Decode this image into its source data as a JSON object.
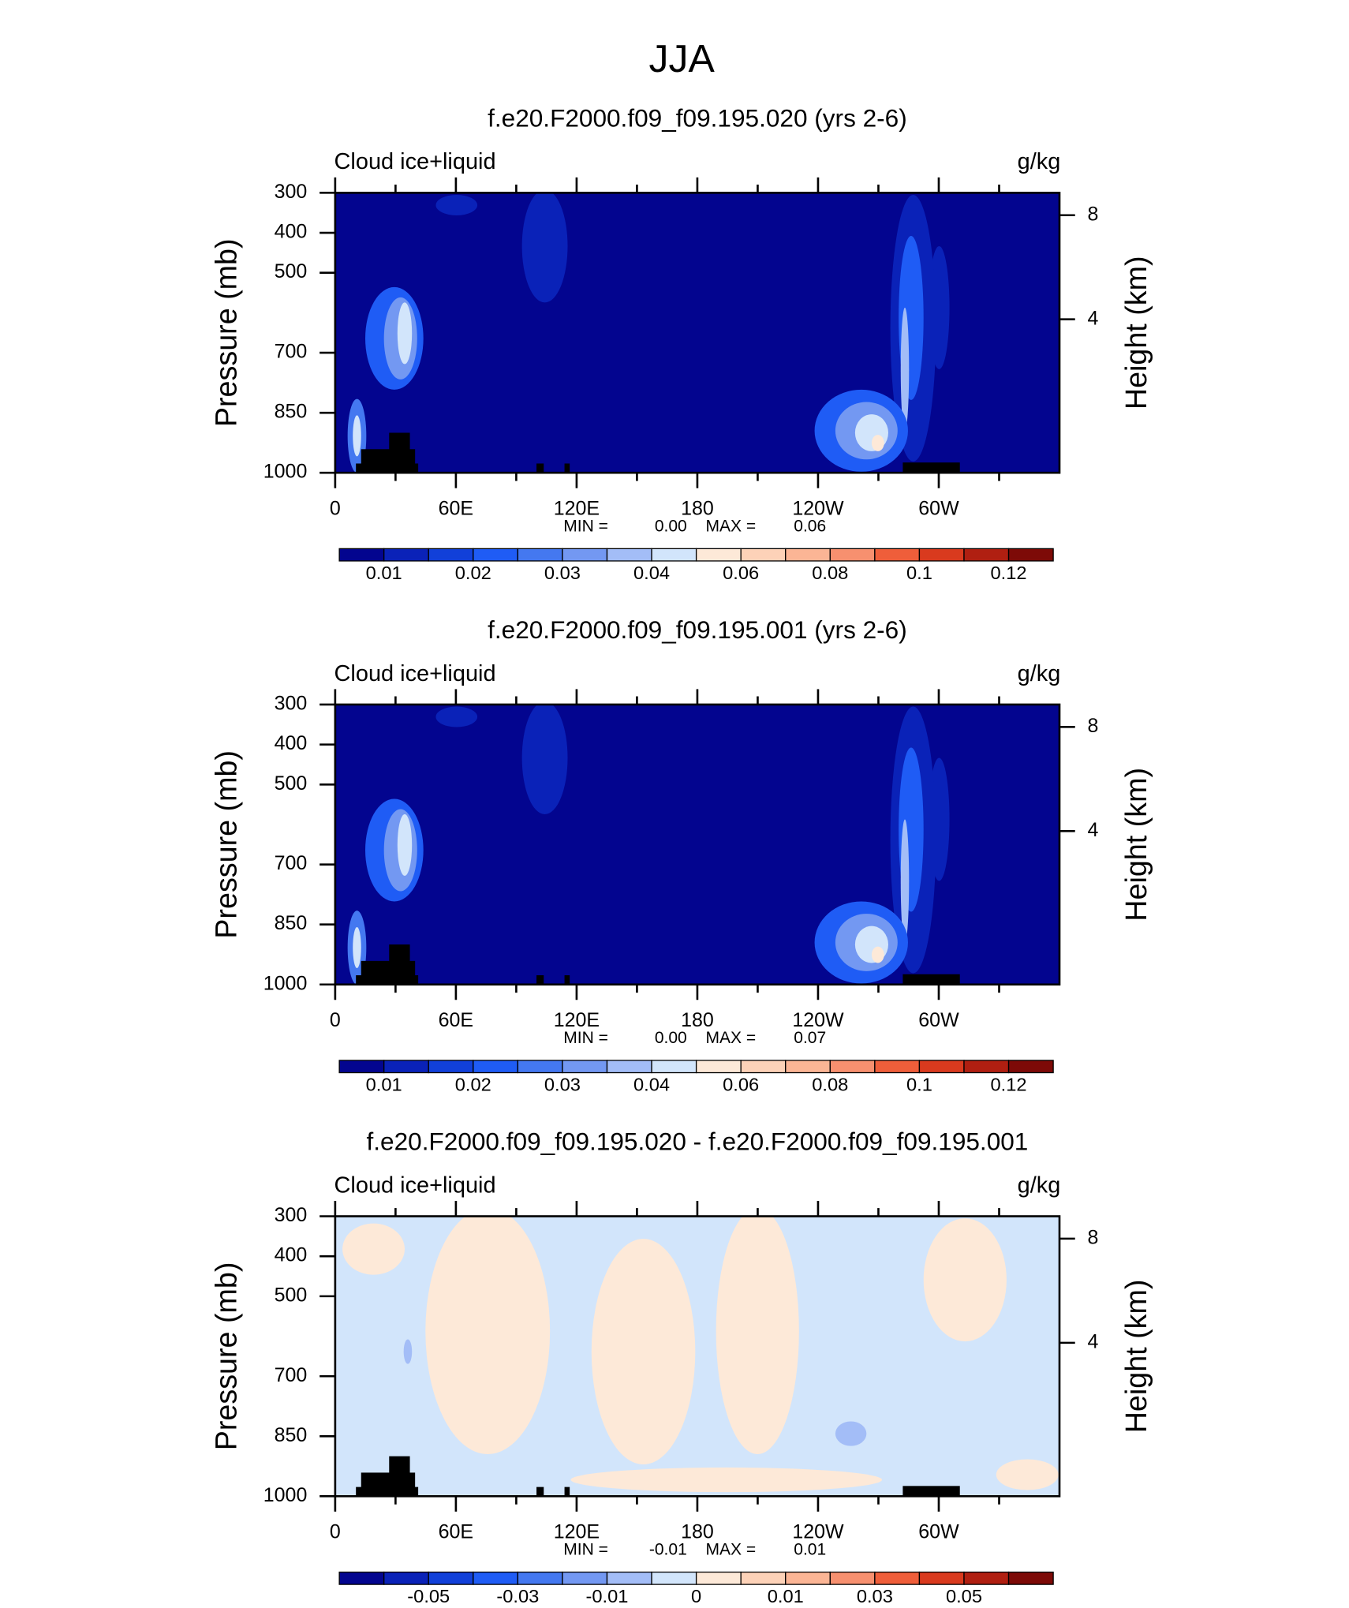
{
  "title": "JJA",
  "chart_data": [
    {
      "type": "contour",
      "title": "f.e20.F2000.f09_f09.195.020 (yrs 2-6)",
      "left_label": "Cloud ice+liquid",
      "units": "g/kg",
      "ylabel": "Pressure (mb)",
      "y2label": "Height (km)",
      "xlim": [
        0,
        360
      ],
      "xticks": [
        0,
        {
          "value": 60,
          "label": "60E"
        },
        {
          "value": 120,
          "label": "120E"
        },
        180,
        {
          "value": 240,
          "label": "120W"
        },
        {
          "value": 300,
          "label": "60W"
        }
      ],
      "xminorticks": [
        30,
        90,
        150,
        210,
        270,
        330
      ],
      "ylim": [
        1000,
        300
      ],
      "yticks": [
        300,
        400,
        500,
        700,
        850,
        1000
      ],
      "y2ticks": [
        4,
        8
      ],
      "min_text": "MIN =",
      "min": {
        "value": 0,
        "label": "0.00"
      },
      "max_text": "MAX =",
      "max": 0.06,
      "colorbar": {
        "ticks": [
          0.01,
          0.02,
          0.03,
          0.04,
          0.06,
          0.08,
          0.1,
          0.12
        ]
      }
    },
    {
      "type": "contour",
      "title": "f.e20.F2000.f09_f09.195.001 (yrs 2-6)",
      "left_label": "Cloud ice+liquid",
      "units": "g/kg",
      "ylabel": "Pressure (mb)",
      "y2label": "Height (km)",
      "xlim": [
        0,
        360
      ],
      "xticks": [
        0,
        {
          "value": 60,
          "label": "60E"
        },
        {
          "value": 120,
          "label": "120E"
        },
        180,
        {
          "value": 240,
          "label": "120W"
        },
        {
          "value": 300,
          "label": "60W"
        }
      ],
      "xminorticks": [
        30,
        90,
        150,
        210,
        270,
        330
      ],
      "ylim": [
        1000,
        300
      ],
      "yticks": [
        300,
        400,
        500,
        700,
        850,
        1000
      ],
      "y2ticks": [
        4,
        8
      ],
      "min_text": "MIN =",
      "min": {
        "value": 0,
        "label": "0.00"
      },
      "max_text": "MAX =",
      "max": 0.07,
      "colorbar": {
        "ticks": [
          0.01,
          0.02,
          0.03,
          0.04,
          0.06,
          0.08,
          0.1,
          0.12
        ]
      }
    },
    {
      "type": "contour",
      "title": "f.e20.F2000.f09_f09.195.020 - f.e20.F2000.f09_f09.195.001",
      "left_label": "Cloud ice+liquid",
      "units": "g/kg",
      "ylabel": "Pressure (mb)",
      "y2label": "Height (km)",
      "xlim": [
        0,
        360
      ],
      "xticks": [
        0,
        {
          "value": 60,
          "label": "60E"
        },
        {
          "value": 120,
          "label": "120E"
        },
        180,
        {
          "value": 240,
          "label": "120W"
        },
        {
          "value": 300,
          "label": "60W"
        }
      ],
      "xminorticks": [
        30,
        90,
        150,
        210,
        270,
        330
      ],
      "ylim": [
        1000,
        300
      ],
      "yticks": [
        300,
        400,
        500,
        700,
        850,
        1000
      ],
      "y2ticks": [
        4,
        8
      ],
      "min_text": "MIN =",
      "min": -0.01,
      "max_text": "MAX =",
      "max": 0.01,
      "colorbar": {
        "ticks": [
          -0.05,
          -0.03,
          -0.01,
          0,
          0.01,
          0.03,
          0.05
        ]
      }
    }
  ]
}
